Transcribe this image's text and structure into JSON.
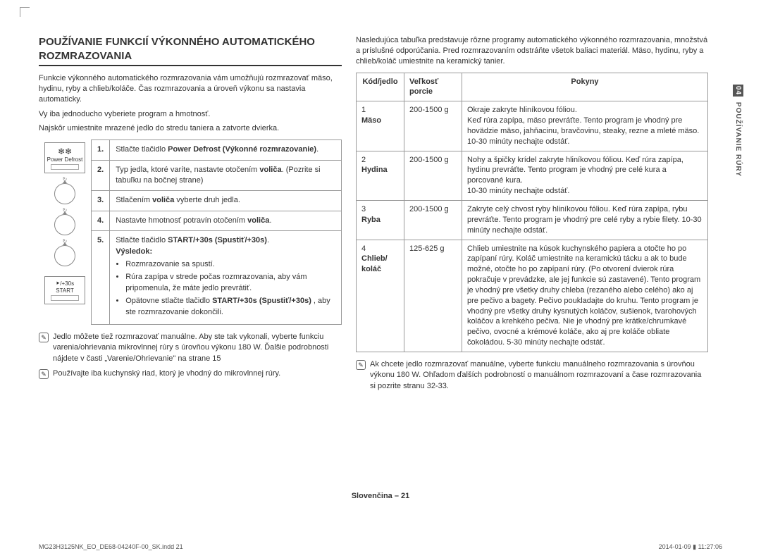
{
  "title": "POUŽÍVANIE FUNKCIÍ VÝKONNÉHO AUTOMATICKÉHO ROZMRAZOVANIA",
  "intro": {
    "p1": "Funkcie výkonného automatického rozmrazovania vám umožňujú rozmrazovať mäso, hydinu, ryby a chlieb/koláče. Čas rozmrazovania a úroveň výkonu sa nastavia automaticky.",
    "p2": "Vy iba jednoducho vyberiete program a hmotnosť.",
    "p3": "Najskôr umiestnite mrazené jedlo do stredu taniera a zatvorte dvierka."
  },
  "icons": {
    "powerDefrost": "Power Defrost",
    "start": "START",
    "startSymbol": "⯈/+30s"
  },
  "steps": [
    {
      "n": "1.",
      "html": "Stlačte tlačidlo <b>Power Defrost (Výkonné rozmrazovanie)</b>."
    },
    {
      "n": "2.",
      "html": "Typ jedla, ktoré varíte, nastavte otočením <b>voliča</b>. (Pozrite si tabuľku na bočnej strane)"
    },
    {
      "n": "3.",
      "html": "Stlačením <b>voliča</b> vyberte druh jedla."
    },
    {
      "n": "4.",
      "html": "Nastavte hmotnosť potravín otočením <b>voliča</b>."
    },
    {
      "n": "5.",
      "html": "Stlačte tlačidlo <b>START/+30s (Spustiť/+30s)</b>.<br><b>Výsledok:</b>",
      "bullets": [
        "Rozmrazovanie sa spustí.",
        "Rúra zapípa v strede počas rozmrazovania, aby vám pripomenula, že máte jedlo prevrátiť.",
        "Opätovne stlačte tlačidlo <b>START/+30s (Spustiť/+30s)</b> , aby ste rozmrazovanie dokončili."
      ]
    }
  ],
  "notes": [
    "Jedlo môžete tiež rozmrazovať manuálne. Aby ste tak vykonali, vyberte funkciu varenia/ohrievania mikrovlnnej rúry s úrovňou výkonu 180 W. Ďalšie podrobnosti nájdete v časti „Varenie/Ohrievanie\" na strane 15",
    "Používajte iba kuchynský riad, ktorý je vhodný do mikrovlnnej rúry."
  ],
  "rightIntro": "Nasledujúca tabuľka predstavuje rôzne programy automatického výkonného rozmrazovania, množstvá a príslušné odporúčania. Pred rozmrazovaním odstráňte všetok baliaci materiál. Mäso, hydinu, ryby a chlieb/koláč umiestnite na keramický tanier.",
  "tableHeaders": {
    "code": "Kód/jedlo",
    "size": "Veľkosť porcie",
    "instr": "Pokyny"
  },
  "tableRows": [
    {
      "code": "1",
      "name": "Mäso",
      "size": "200-1500 g",
      "instr": "Okraje zakryte hliníkovou fóliou.\nKeď rúra zapípa, mäso prevráťte. Tento program je vhodný pre hovädzie mäso, jahňacinu, bravčovinu, steaky, rezne a mleté mäso. 10-30 minúty nechajte odstáť."
    },
    {
      "code": "2",
      "name": "Hydina",
      "size": "200-1500 g",
      "instr": "Nohy a špičky krídel zakryte hliníkovou fóliou. Keď rúra zapípa, hydinu prevráťte. Tento program je vhodný pre celé kura a porcované kura.\n10-30 minúty nechajte odstáť."
    },
    {
      "code": "3",
      "name": "Ryba",
      "size": "200-1500 g",
      "instr": "Zakryte celý chvost ryby hliníkovou fóliou. Keď rúra zapípa, rybu prevráťte. Tento program je vhodný pre celé ryby a rybie filety. 10-30 minúty nechajte odstáť."
    },
    {
      "code": "4",
      "name": "Chlieb/\nkoláč",
      "size": "125-625 g",
      "instr": "Chlieb umiestnite na kúsok kuchynského papiera a otočte ho po zapípaní rúry. Koláč umiestnite na keramickú tácku a ak to bude možné, otočte ho po zapípaní rúry. (Po otvorení dvierok rúra pokračuje v prevádzke, ale jej funkcie sú zastavené). Tento program je vhodný pre všetky druhy chleba (rezaného alebo celého) ako aj pre pečivo a bagety. Pečivo poukladajte do kruhu. Tento program je vhodný pre všetky druhy kysnutých koláčov, sušienok, tvarohových koláčov a krehkého pečiva. Nie je vhodný pre krátke/chrumkavé pečivo, ovocné a krémové koláče, ako aj pre koláče obliate čokoládou. 5-30 minúty nechajte odstáť."
    }
  ],
  "rightNote": "Ak chcete jedlo rozmrazovať manuálne, vyberte funkciu manuálneho rozmrazovania s úrovňou výkonu 180 W. Ohľadom ďalších podrobností o manuálnom rozmrazovaní a čase rozmrazovania si pozrite stranu 32-33.",
  "sideTab": {
    "num": "04",
    "label": "POUŽÍVANIE RÚRY"
  },
  "pageNum": "Slovenčina – 21",
  "footer": {
    "left": "MG23H3125NK_EO_DE68-04240F-00_SK.indd   21",
    "right": "2014-01-09   ▮ 11:27:06"
  }
}
